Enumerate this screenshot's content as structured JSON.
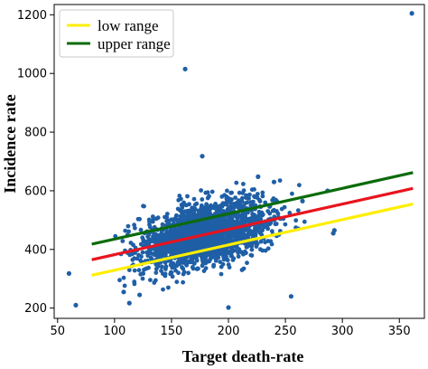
{
  "chart_data": {
    "type": "scatter",
    "xlabel": "Target death-rate",
    "ylabel": "Incidence rate",
    "xlim": [
      47,
      372
    ],
    "ylim": [
      165,
      1235
    ],
    "xticks": [
      50,
      100,
      150,
      200,
      250,
      300,
      350
    ],
    "yticks": [
      200,
      400,
      600,
      800,
      1000,
      1200
    ],
    "grid": false,
    "legend_position": "top-left",
    "point_color": "#1f5fa6",
    "scatter_cloud": {
      "x_range": [
        100,
        275
      ],
      "center": [
        180,
        450
      ],
      "slope": 0.86
    },
    "scatter_outliers": [
      {
        "x": 60,
        "y": 318
      },
      {
        "x": 66,
        "y": 210
      },
      {
        "x": 162,
        "y": 1015
      },
      {
        "x": 177,
        "y": 718
      },
      {
        "x": 361,
        "y": 1205
      },
      {
        "x": 293,
        "y": 465
      },
      {
        "x": 292,
        "y": 455
      },
      {
        "x": 287,
        "y": 600
      },
      {
        "x": 265,
        "y": 565
      },
      {
        "x": 226,
        "y": 648
      },
      {
        "x": 200,
        "y": 202
      },
      {
        "x": 113,
        "y": 217
      },
      {
        "x": 122,
        "y": 245
      },
      {
        "x": 108,
        "y": 255
      },
      {
        "x": 240,
        "y": 630
      },
      {
        "x": 255,
        "y": 240
      }
    ],
    "series": [
      {
        "name": "low range",
        "color": "#ffee00",
        "x": [
          80,
          362
        ],
        "y": [
          312,
          555
        ]
      },
      {
        "name": "",
        "color": "#e8141e",
        "x": [
          80,
          362
        ],
        "y": [
          365,
          608
        ]
      },
      {
        "name": "upper range",
        "color": "#0b6b0b",
        "x": [
          80,
          362
        ],
        "y": [
          418,
          662
        ]
      }
    ]
  }
}
